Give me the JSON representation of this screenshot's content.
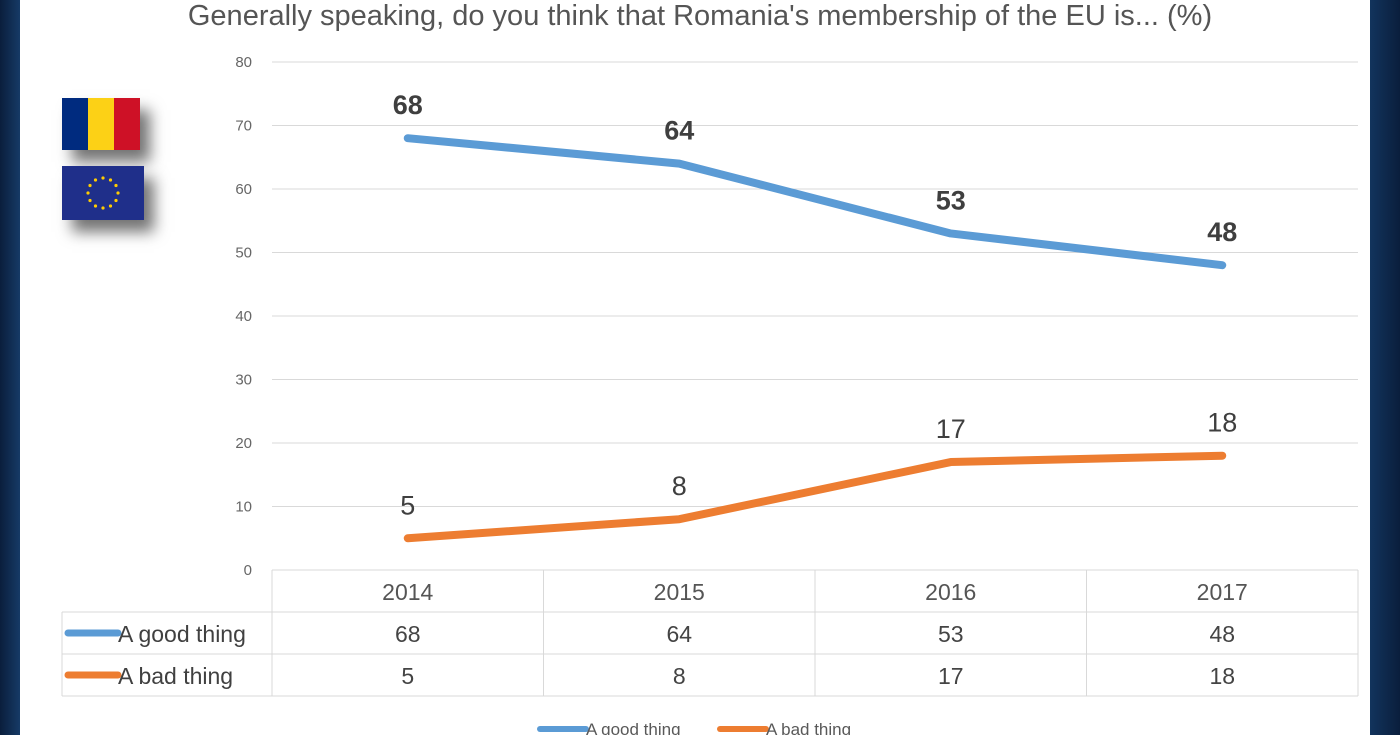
{
  "colors": {
    "good": "#5b9bd5",
    "bad": "#ed7d31",
    "grid": "#d9d9d9",
    "flag_ro": [
      "#002b7f",
      "#fcd116",
      "#ce1126"
    ],
    "flag_eu_bg": "#1f2f8a",
    "flag_eu_stars": "#ffcc00"
  },
  "icons": [
    "romania-flag-icon",
    "eu-flag-icon"
  ],
  "chart_data": {
    "type": "line",
    "title": "Generally speaking, do you think that Romania's membership of the EU is... (%)",
    "categories": [
      "2014",
      "2015",
      "2016",
      "2017"
    ],
    "series": [
      {
        "name": "A good thing",
        "values": [
          68,
          64,
          53,
          48
        ],
        "color": "#5b9bd5"
      },
      {
        "name": "A bad thing",
        "values": [
          5,
          8,
          17,
          18
        ],
        "color": "#ed7d31"
      }
    ],
    "ylim": [
      0,
      80
    ],
    "yticks": [
      0,
      10,
      20,
      30,
      40,
      50,
      60,
      70,
      80
    ],
    "grid": true,
    "data_table": true,
    "legend": "bottom"
  }
}
